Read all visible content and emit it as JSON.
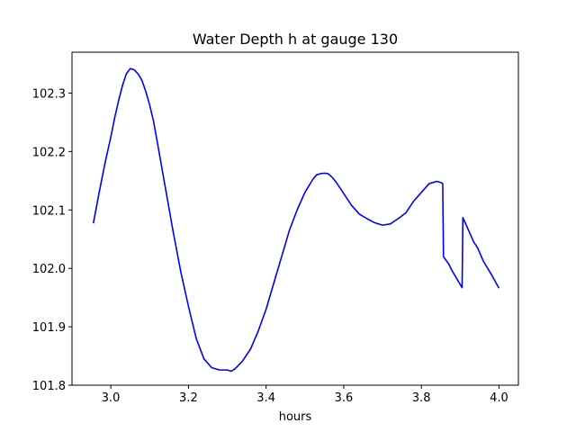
{
  "chart_data": {
    "type": "line",
    "title": "Water Depth h at gauge 130",
    "xlabel": "hours",
    "ylabel": "",
    "xlim": [
      2.9,
      4.05
    ],
    "ylim": [
      101.8,
      102.37
    ],
    "xticks": [
      3.0,
      3.2,
      3.4,
      3.6,
      3.8,
      4.0
    ],
    "xtick_labels": [
      "3.0",
      "3.2",
      "3.4",
      "3.6",
      "3.8",
      "4.0"
    ],
    "yticks": [
      101.8,
      101.9,
      102.0,
      102.1,
      102.2,
      102.3
    ],
    "ytick_labels": [
      "101.8",
      "101.9",
      "102.0",
      "102.1",
      "102.2",
      "102.3"
    ],
    "grid": false,
    "series": [
      {
        "color": "#0000ff",
        "points": [
          [
            2.955,
            102.077
          ],
          [
            2.97,
            102.13
          ],
          [
            2.985,
            102.18
          ],
          [
            3.0,
            102.225
          ],
          [
            3.01,
            102.258
          ],
          [
            3.02,
            102.287
          ],
          [
            3.03,
            102.313
          ],
          [
            3.04,
            102.333
          ],
          [
            3.05,
            102.342
          ],
          [
            3.06,
            102.34
          ],
          [
            3.07,
            102.333
          ],
          [
            3.08,
            102.322
          ],
          [
            3.09,
            102.303
          ],
          [
            3.1,
            102.28
          ],
          [
            3.11,
            102.252
          ],
          [
            3.12,
            102.215
          ],
          [
            3.14,
            102.14
          ],
          [
            3.16,
            102.065
          ],
          [
            3.18,
            101.995
          ],
          [
            3.2,
            101.935
          ],
          [
            3.22,
            101.88
          ],
          [
            3.24,
            101.845
          ],
          [
            3.26,
            101.83
          ],
          [
            3.28,
            101.826
          ],
          [
            3.3,
            101.826
          ],
          [
            3.31,
            101.824
          ],
          [
            3.32,
            101.828
          ],
          [
            3.33,
            101.835
          ],
          [
            3.34,
            101.842
          ],
          [
            3.36,
            101.862
          ],
          [
            3.38,
            101.893
          ],
          [
            3.4,
            101.93
          ],
          [
            3.42,
            101.975
          ],
          [
            3.44,
            102.02
          ],
          [
            3.46,
            102.065
          ],
          [
            3.48,
            102.1
          ],
          [
            3.5,
            102.13
          ],
          [
            3.52,
            102.152
          ],
          [
            3.53,
            102.16
          ],
          [
            3.54,
            102.162
          ],
          [
            3.55,
            102.163
          ],
          [
            3.56,
            102.162
          ],
          [
            3.57,
            102.156
          ],
          [
            3.58,
            102.148
          ],
          [
            3.6,
            102.128
          ],
          [
            3.62,
            102.108
          ],
          [
            3.64,
            102.093
          ],
          [
            3.66,
            102.085
          ],
          [
            3.68,
            102.078
          ],
          [
            3.7,
            102.074
          ],
          [
            3.72,
            102.076
          ],
          [
            3.74,
            102.085
          ],
          [
            3.76,
            102.095
          ],
          [
            3.78,
            102.115
          ],
          [
            3.8,
            102.13
          ],
          [
            3.82,
            102.145
          ],
          [
            3.84,
            102.149
          ],
          [
            3.85,
            102.147
          ],
          [
            3.855,
            102.145
          ],
          [
            3.857,
            102.02
          ],
          [
            3.87,
            102.008
          ],
          [
            3.88,
            101.995
          ],
          [
            3.895,
            101.978
          ],
          [
            3.905,
            101.967
          ],
          [
            3.907,
            102.087
          ],
          [
            3.915,
            102.075
          ],
          [
            3.925,
            102.06
          ],
          [
            3.935,
            102.045
          ],
          [
            3.945,
            102.035
          ],
          [
            3.96,
            102.012
          ],
          [
            3.98,
            101.99
          ],
          [
            4.0,
            101.966
          ]
        ]
      }
    ]
  }
}
